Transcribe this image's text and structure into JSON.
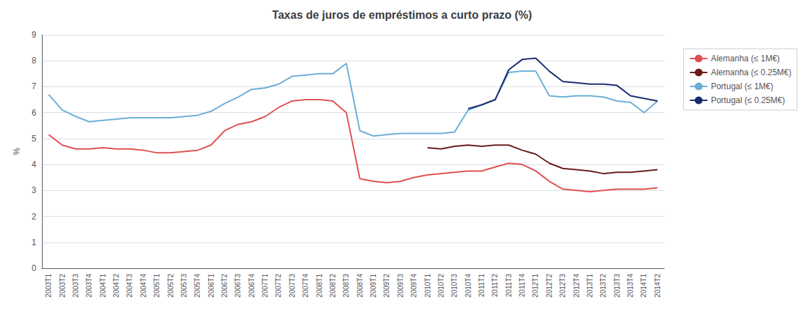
{
  "chart_data": {
    "type": "line",
    "title": "Taxas de juros de empréstimos a curto prazo (%)",
    "y_label": "%",
    "categories": [
      "2003T1",
      "2003T2",
      "2003T3",
      "2003T4",
      "2004T1",
      "2004T2",
      "2004T3",
      "2004T4",
      "2005T1",
      "2005T2",
      "2005T3",
      "2005T4",
      "2006T1",
      "2006T2",
      "2006T3",
      "2006T4",
      "2007T1",
      "2007T2",
      "2007T3",
      "2007T4",
      "2008T1",
      "2008T2",
      "2008T3",
      "2008T4",
      "2009T1",
      "2009T2",
      "2009T3",
      "2009T4",
      "2010T1",
      "2010T2",
      "2010T3",
      "2010T4",
      "2011T1",
      "2011T2",
      "2011T3",
      "2011T4",
      "2012T1",
      "2012T2",
      "2012T3",
      "2012T4",
      "2013T1",
      "2013T2",
      "2013T3",
      "2013T4",
      "2014T1",
      "2014T2"
    ],
    "series": [
      {
        "name": "Alemanha (≤ 1M€)",
        "color": "#e05050",
        "values": [
          5.15,
          4.75,
          4.6,
          4.6,
          4.65,
          4.6,
          4.6,
          4.55,
          4.45,
          4.45,
          4.5,
          4.55,
          4.75,
          5.3,
          5.55,
          5.65,
          5.85,
          6.2,
          6.45,
          6.5,
          6.5,
          6.45,
          6.0,
          3.45,
          3.35,
          3.3,
          3.35,
          3.5,
          3.6,
          3.65,
          3.7,
          3.75,
          3.75,
          3.9,
          4.05,
          4.0,
          3.75,
          3.35,
          3.05,
          3.0,
          2.95,
          3.0,
          3.05,
          3.05,
          3.05,
          3.1
        ]
      },
      {
        "name": "Alemanha (≤ 0.25M€)",
        "color": "#6b1a1a",
        "values": [
          null,
          null,
          null,
          null,
          null,
          null,
          null,
          null,
          null,
          null,
          null,
          null,
          null,
          null,
          null,
          null,
          null,
          null,
          null,
          null,
          null,
          null,
          null,
          null,
          null,
          null,
          null,
          null,
          4.65,
          4.6,
          4.7,
          4.75,
          4.7,
          4.75,
          4.75,
          4.55,
          4.4,
          4.05,
          3.85,
          3.8,
          3.75,
          3.65,
          3.7,
          3.7,
          3.75,
          3.8
        ]
      },
      {
        "name": "Portugal (≤ 1M€)",
        "color": "#6baed6",
        "values": [
          6.7,
          6.1,
          5.85,
          5.65,
          5.7,
          5.75,
          5.8,
          5.8,
          5.8,
          5.8,
          5.85,
          5.9,
          6.05,
          6.35,
          6.6,
          6.9,
          6.95,
          7.1,
          7.4,
          7.45,
          7.5,
          7.5,
          7.9,
          5.3,
          5.1,
          5.15,
          5.2,
          5.2,
          5.2,
          5.2,
          5.25,
          6.1,
          6.3,
          6.5,
          7.55,
          7.6,
          7.6,
          6.65,
          6.6,
          6.65,
          6.65,
          6.6,
          6.45,
          6.4,
          6.0,
          6.45
        ]
      },
      {
        "name": "Portugal (≤ 0.25M€)",
        "color": "#1a2c6e",
        "values": [
          null,
          null,
          null,
          null,
          null,
          null,
          null,
          null,
          null,
          null,
          null,
          null,
          null,
          null,
          null,
          null,
          null,
          null,
          null,
          null,
          null,
          null,
          null,
          null,
          null,
          null,
          null,
          null,
          null,
          null,
          null,
          6.15,
          6.3,
          6.5,
          7.65,
          8.05,
          8.1,
          7.6,
          7.2,
          7.15,
          7.1,
          7.1,
          7.05,
          6.65,
          6.55,
          6.45
        ]
      }
    ],
    "ylim": [
      0,
      9
    ],
    "yticks": [
      0,
      1,
      2,
      3,
      4,
      5,
      6,
      7,
      8,
      9
    ],
    "grid": true,
    "legend": "right"
  }
}
